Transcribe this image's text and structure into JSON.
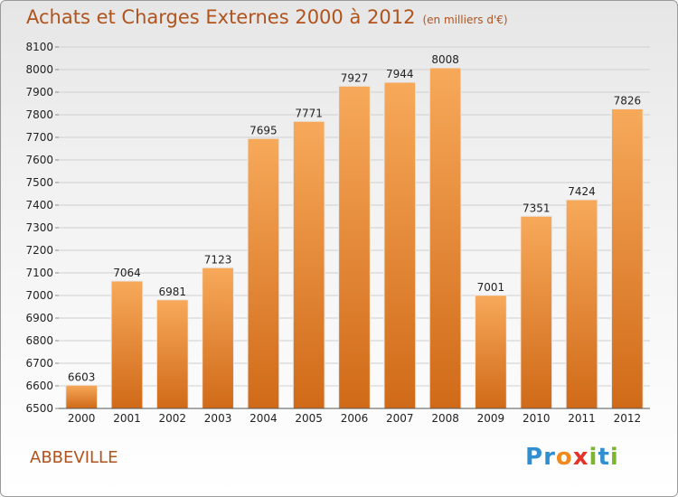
{
  "header": {
    "title": "Achats et Charges Externes 2000 à 2012",
    "unit": "(en milliers d'€)"
  },
  "city": "ABBEVILLE",
  "logo": {
    "text": "Proxiti",
    "letters": [
      "P",
      "r",
      "o",
      "x",
      "i",
      "t",
      "i"
    ],
    "colors": [
      "#2f8fd0",
      "#2f8fd0",
      "#f08a1c",
      "#e6332a",
      "#7cb530",
      "#2f8fd0",
      "#7cb530"
    ]
  },
  "chart_data": {
    "type": "bar",
    "title": "Achats et Charges Externes 2000 à 2012",
    "subtitle": "(en milliers d'€)",
    "categories": [
      "2000",
      "2001",
      "2002",
      "2003",
      "2004",
      "2005",
      "2006",
      "2007",
      "2008",
      "2009",
      "2010",
      "2011",
      "2012"
    ],
    "values": [
      6603,
      7064,
      6981,
      7123,
      7695,
      7771,
      7927,
      7944,
      8008,
      7001,
      7351,
      7424,
      7826
    ],
    "ylim": [
      6500,
      8100
    ],
    "yticks": [
      6500,
      6600,
      6700,
      6800,
      6900,
      7000,
      7100,
      7200,
      7300,
      7400,
      7500,
      7600,
      7700,
      7800,
      7900,
      8000,
      8100
    ],
    "grid": true,
    "bar_color_top": "#f7a95a",
    "bar_color_bottom": "#d06a18",
    "text_color": "#222222",
    "title_color": "#b0531d"
  }
}
